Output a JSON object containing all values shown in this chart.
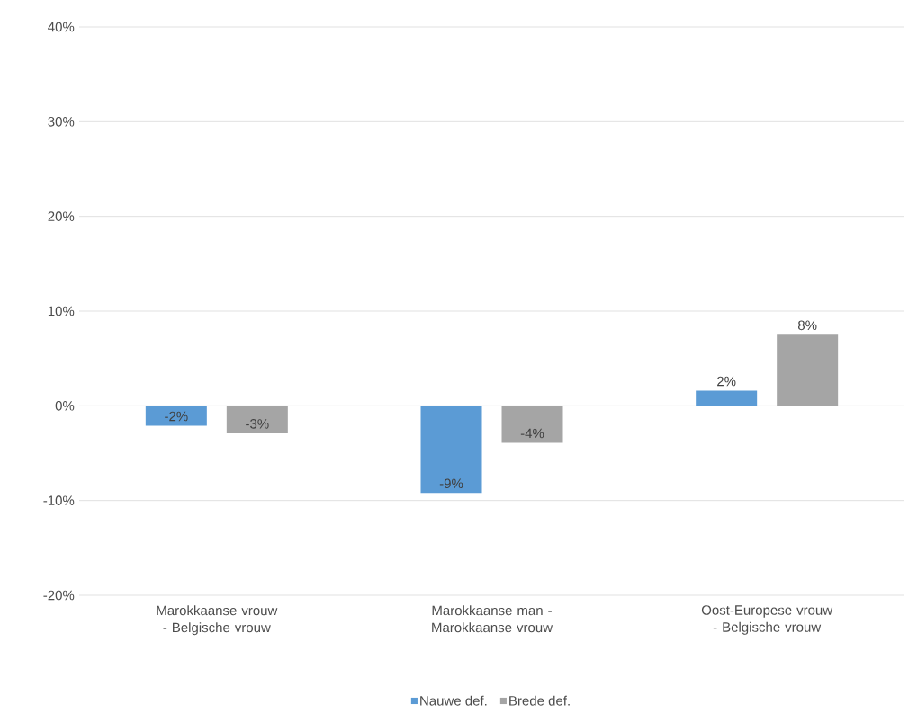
{
  "chart_data": {
    "type": "bar",
    "categories": [
      "Marokkaanse vrouw - Belgische vrouw",
      "Marokkaanse man - Marokkaanse vrouw",
      "Oost-Europese vrouw - Belgische vrouw"
    ],
    "series": [
      {
        "name": "Nauwe def.",
        "color": "#5b9bd5",
        "values": [
          -2.1,
          -9.2,
          1.6
        ],
        "value_labels": [
          "-2%",
          "-9%",
          "2%"
        ]
      },
      {
        "name": "Brede def.",
        "color": "#a5a5a5",
        "values": [
          -2.9,
          -3.9,
          7.5
        ],
        "value_labels": [
          "-3%",
          "-4%",
          "8%"
        ]
      }
    ],
    "ylim": [
      -20,
      40
    ],
    "yticks": [
      {
        "value": -20,
        "label": "-20%"
      },
      {
        "value": -10,
        "label": "-10%"
      },
      {
        "value": 0,
        "label": "0%"
      },
      {
        "value": 10,
        "label": "10%"
      },
      {
        "value": 20,
        "label": "20%"
      },
      {
        "value": 30,
        "label": "30%"
      },
      {
        "value": 40,
        "label": "40%"
      }
    ],
    "grid": "y",
    "legend": "bottom"
  }
}
